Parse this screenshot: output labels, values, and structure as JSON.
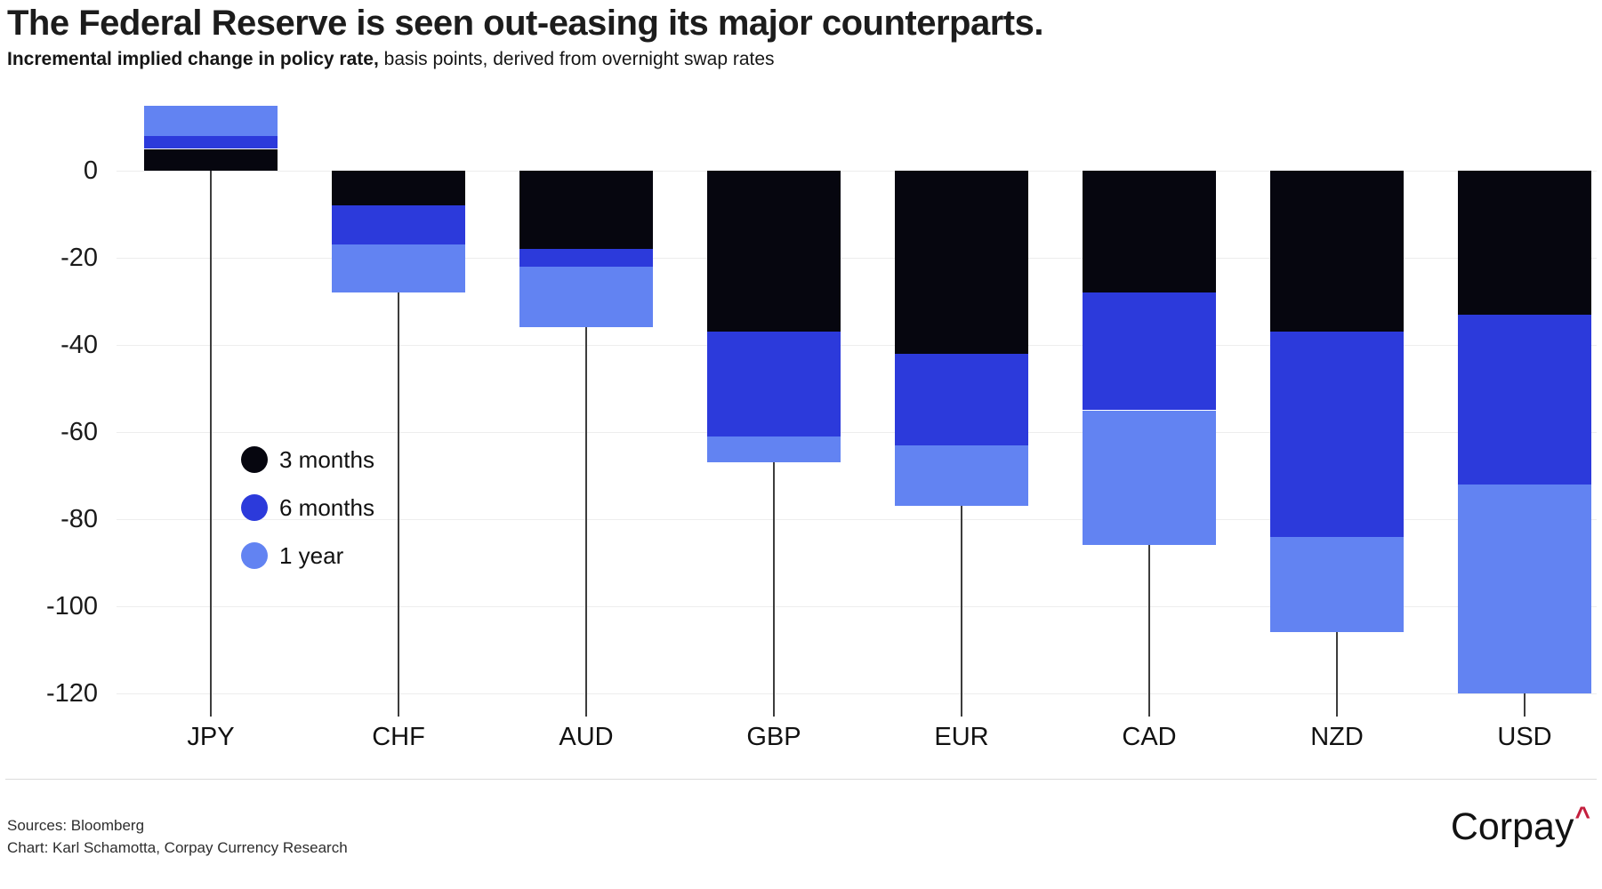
{
  "header": {
    "title": "The Federal Reserve is seen out-easing its major counterparts.",
    "subtitle_bold": "Incremental implied change in policy rate,",
    "subtitle_rest": "basis points, derived from overnight swap rates"
  },
  "chart_data": {
    "type": "bar",
    "stacked": true,
    "orientation": "vertical",
    "units": "basis points",
    "title": "The Federal Reserve is seen out-easing its major counterparts.",
    "categories": [
      "JPY",
      "CHF",
      "AUD",
      "GBP",
      "EUR",
      "CAD",
      "NZD",
      "USD"
    ],
    "series": [
      {
        "name": "3 months",
        "color": "#06060f",
        "values": [
          5,
          -8,
          -18,
          -37,
          -42,
          -28,
          -37,
          -33
        ]
      },
      {
        "name": "6 months",
        "color": "#2c3adb",
        "values": [
          3,
          -9,
          -4,
          -24,
          -21,
          -27,
          -47,
          -39
        ]
      },
      {
        "name": "1 year",
        "color": "#6283f2",
        "values": [
          7,
          -11,
          -14,
          -6,
          -14,
          -31,
          -22,
          -48
        ]
      }
    ],
    "stack_totals": [
      15,
      -28,
      -36,
      -67,
      -77,
      -86,
      -106,
      -120
    ],
    "y_ticks": [
      0,
      -20,
      -40,
      -60,
      -80,
      -100,
      -120
    ],
    "ylim": [
      -124,
      17
    ],
    "xlabel": "",
    "ylabel": "",
    "grid": "horizontal",
    "legend_position": "inside-left"
  },
  "footer": {
    "sources": "Sources: Bloomberg",
    "credit": "Chart: Karl Schamotta, Corpay Currency Research",
    "brand": "Corpay",
    "brand_mark": "^"
  }
}
